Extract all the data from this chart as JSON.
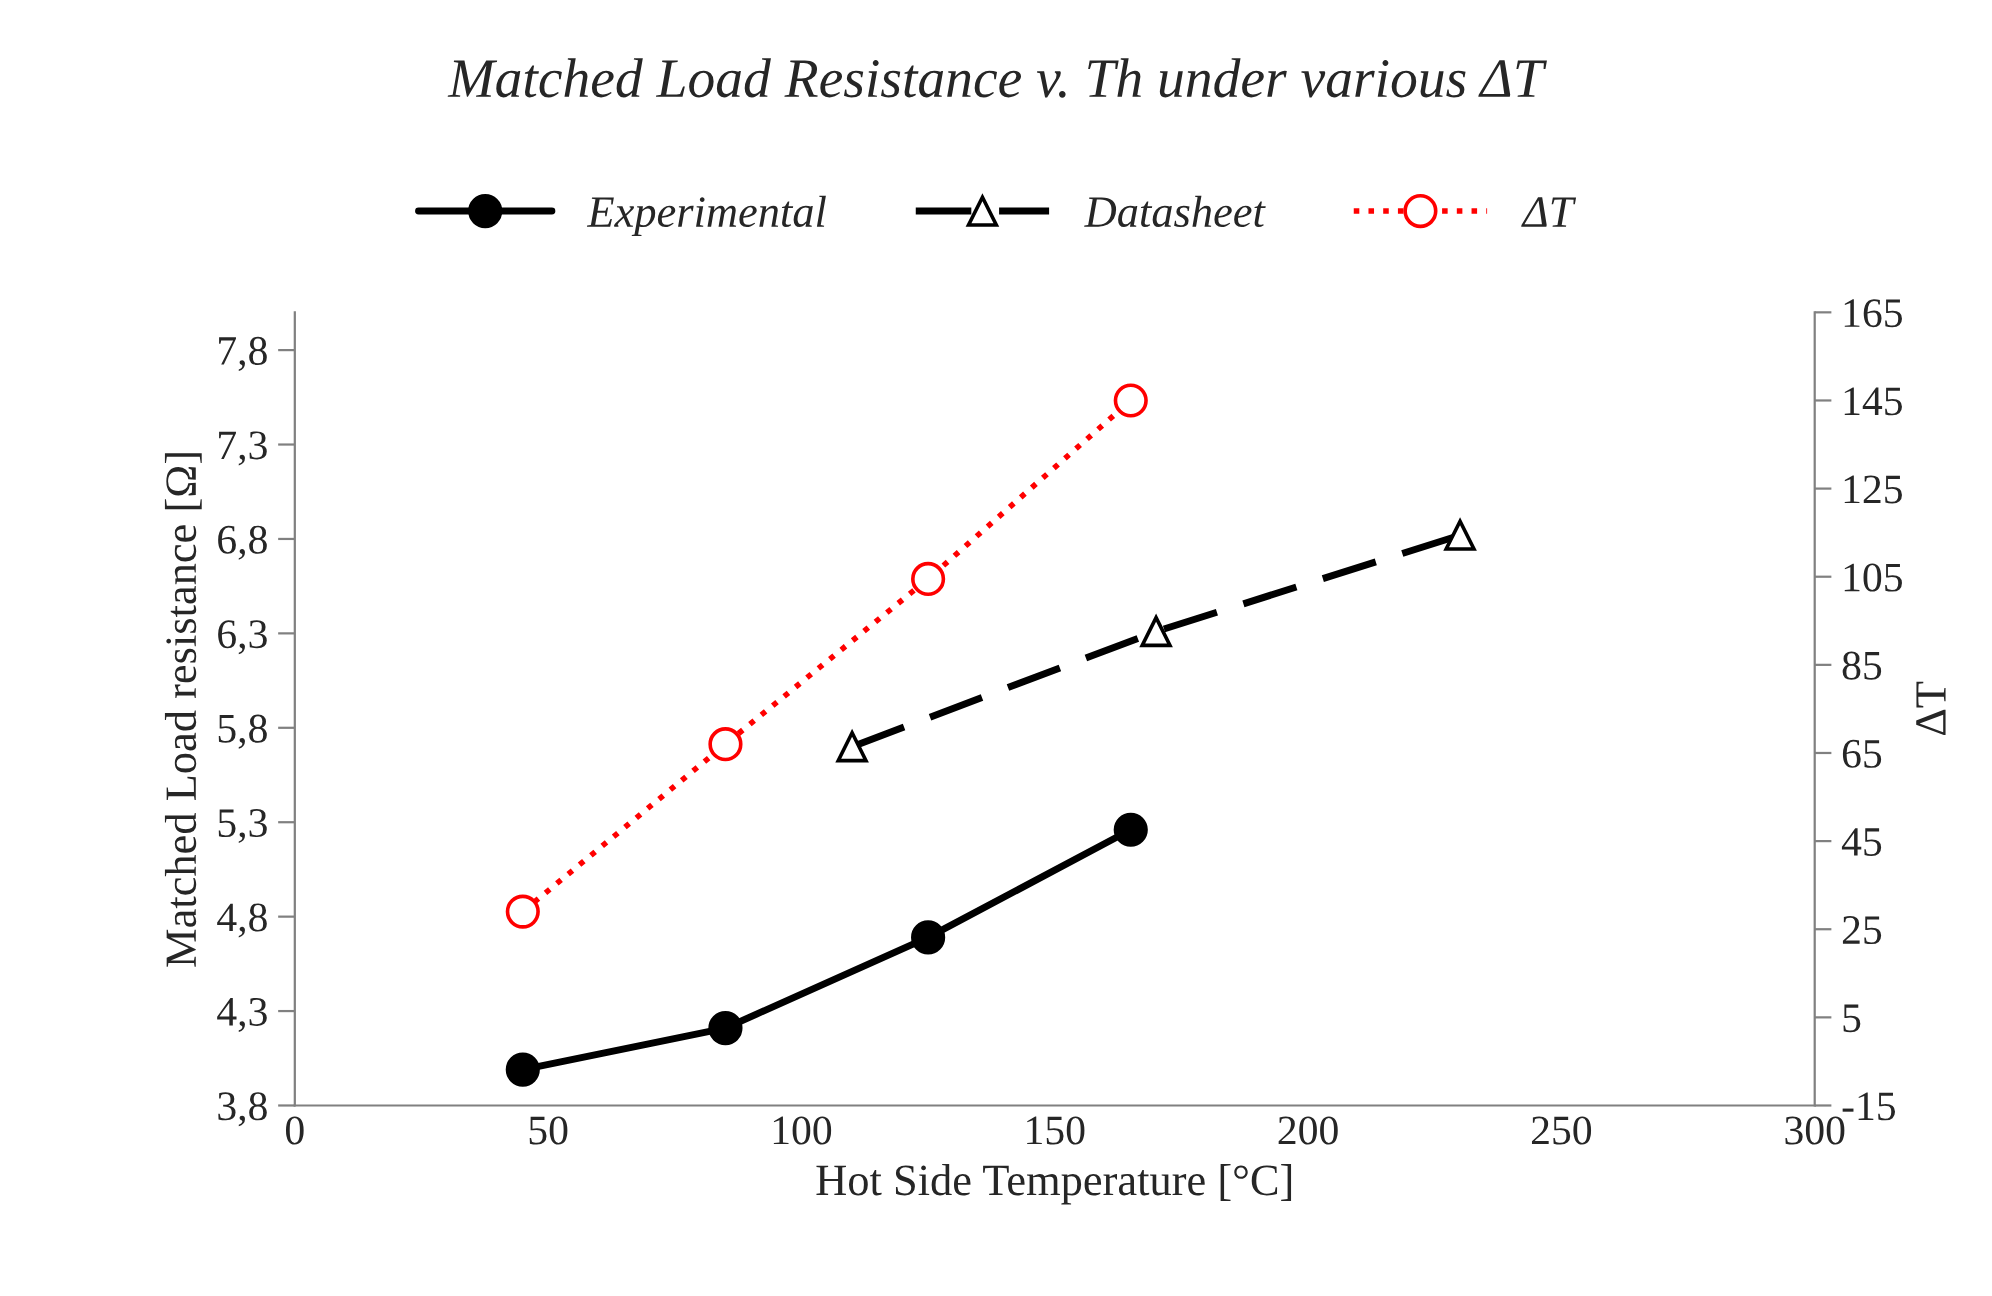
{
  "chart_data": {
    "type": "line",
    "title": "Matched Load Resistance v. Th under various ΔT",
    "xlabel": "Hot Side Temperature [°C]",
    "ylabel": "Matched Load resistance [Ω]",
    "y2label": "ΔT",
    "series": [
      {
        "name": "Experimental",
        "color": "#000000",
        "x": [
          45,
          85,
          125,
          165
        ],
        "values": [
          3.99,
          4.21,
          4.69,
          5.26
        ],
        "marker": "circle",
        "line_style": "solid"
      },
      {
        "name": "Datasheet",
        "color": "#000000",
        "x": [
          110,
          170,
          230
        ],
        "values": [
          5.7,
          6.31,
          6.82
        ],
        "marker": "triangle",
        "line_style": "dashed"
      },
      {
        "name": "ΔT",
        "color": "#ff0000",
        "x": [
          45,
          85,
          125,
          165
        ],
        "values": [
          29,
          67,
          104.5,
          145
        ],
        "marker": "circle",
        "line_style": "dotted",
        "axis": "y2"
      }
    ],
    "xlim": [
      0,
      300
    ],
    "xticks": [
      0,
      50,
      100,
      150,
      200,
      250,
      300
    ],
    "ylim": [
      3.8,
      8.0
    ],
    "yticks": [
      {
        "value": 3.8,
        "label": "3,8"
      },
      {
        "value": 4.3,
        "label": "4,3"
      },
      {
        "value": 4.8,
        "label": "4,8"
      },
      {
        "value": 5.3,
        "label": "5,3"
      },
      {
        "value": 5.8,
        "label": "5,8"
      },
      {
        "value": 6.3,
        "label": "6,3"
      },
      {
        "value": 6.8,
        "label": "6,8"
      },
      {
        "value": 7.3,
        "label": "7,3"
      },
      {
        "value": 7.8,
        "label": "7,8"
      }
    ],
    "y2lim": [
      -15,
      165
    ],
    "y2ticks": [
      -15,
      5,
      25,
      45,
      65,
      85,
      105,
      125,
      145,
      165
    ],
    "grid": false,
    "legend": "top"
  }
}
